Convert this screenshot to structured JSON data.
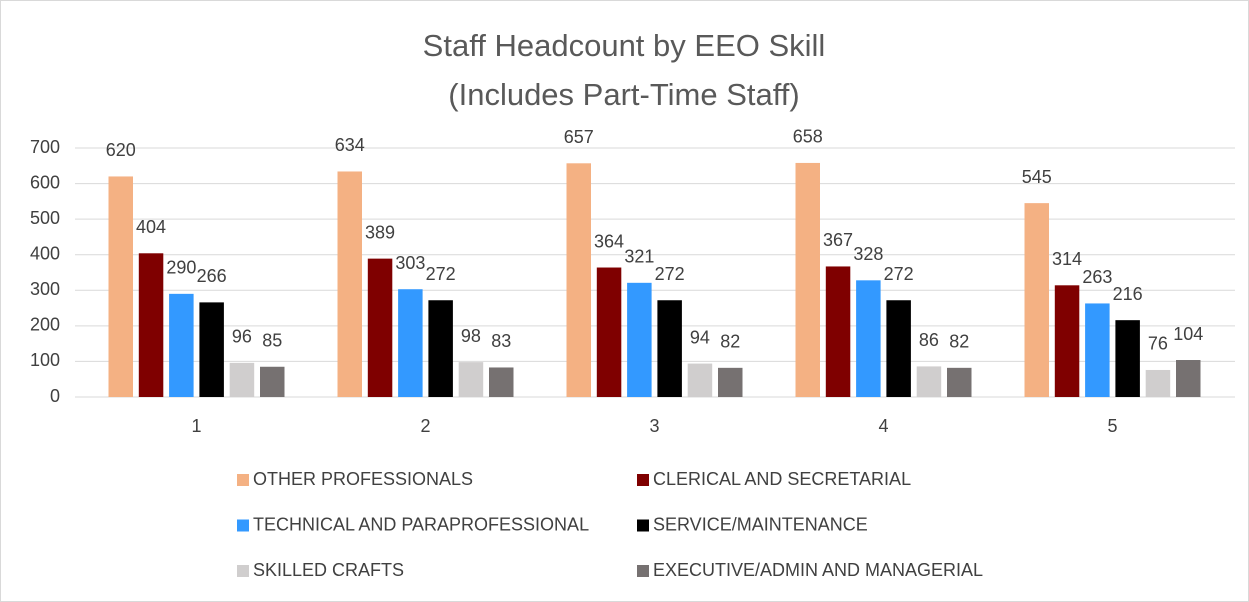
{
  "chart_data": {
    "type": "bar",
    "title": "Staff Headcount by EEO Skill",
    "subtitle": "(Includes Part-Time Staff)",
    "categories": [
      "1",
      "2",
      "3",
      "4",
      "5"
    ],
    "series": [
      {
        "name": "OTHER PROFESSIONALS",
        "color": "#f4b183",
        "values": [
          620,
          634,
          657,
          658,
          545
        ]
      },
      {
        "name": "CLERICAL AND SECRETARIAL",
        "color": "#7f0000",
        "values": [
          404,
          389,
          364,
          367,
          314
        ]
      },
      {
        "name": "TECHNICAL AND PARAPROFESSIONAL",
        "color": "#3399ff",
        "values": [
          290,
          303,
          321,
          328,
          263
        ]
      },
      {
        "name": "SERVICE/MAINTENANCE",
        "color": "#000000",
        "values": [
          266,
          272,
          272,
          272,
          216
        ]
      },
      {
        "name": "SKILLED CRAFTS",
        "color": "#d0cece",
        "values": [
          96,
          98,
          94,
          86,
          76
        ]
      },
      {
        "name": "EXECUTIVE/ADMIN AND MANAGERIAL",
        "color": "#767171",
        "values": [
          85,
          83,
          82,
          82,
          104
        ]
      }
    ],
    "ylim": [
      0,
      700
    ],
    "yticks": [
      0,
      100,
      200,
      300,
      400,
      500,
      600,
      700
    ],
    "grid": true,
    "legend": "bottom"
  }
}
